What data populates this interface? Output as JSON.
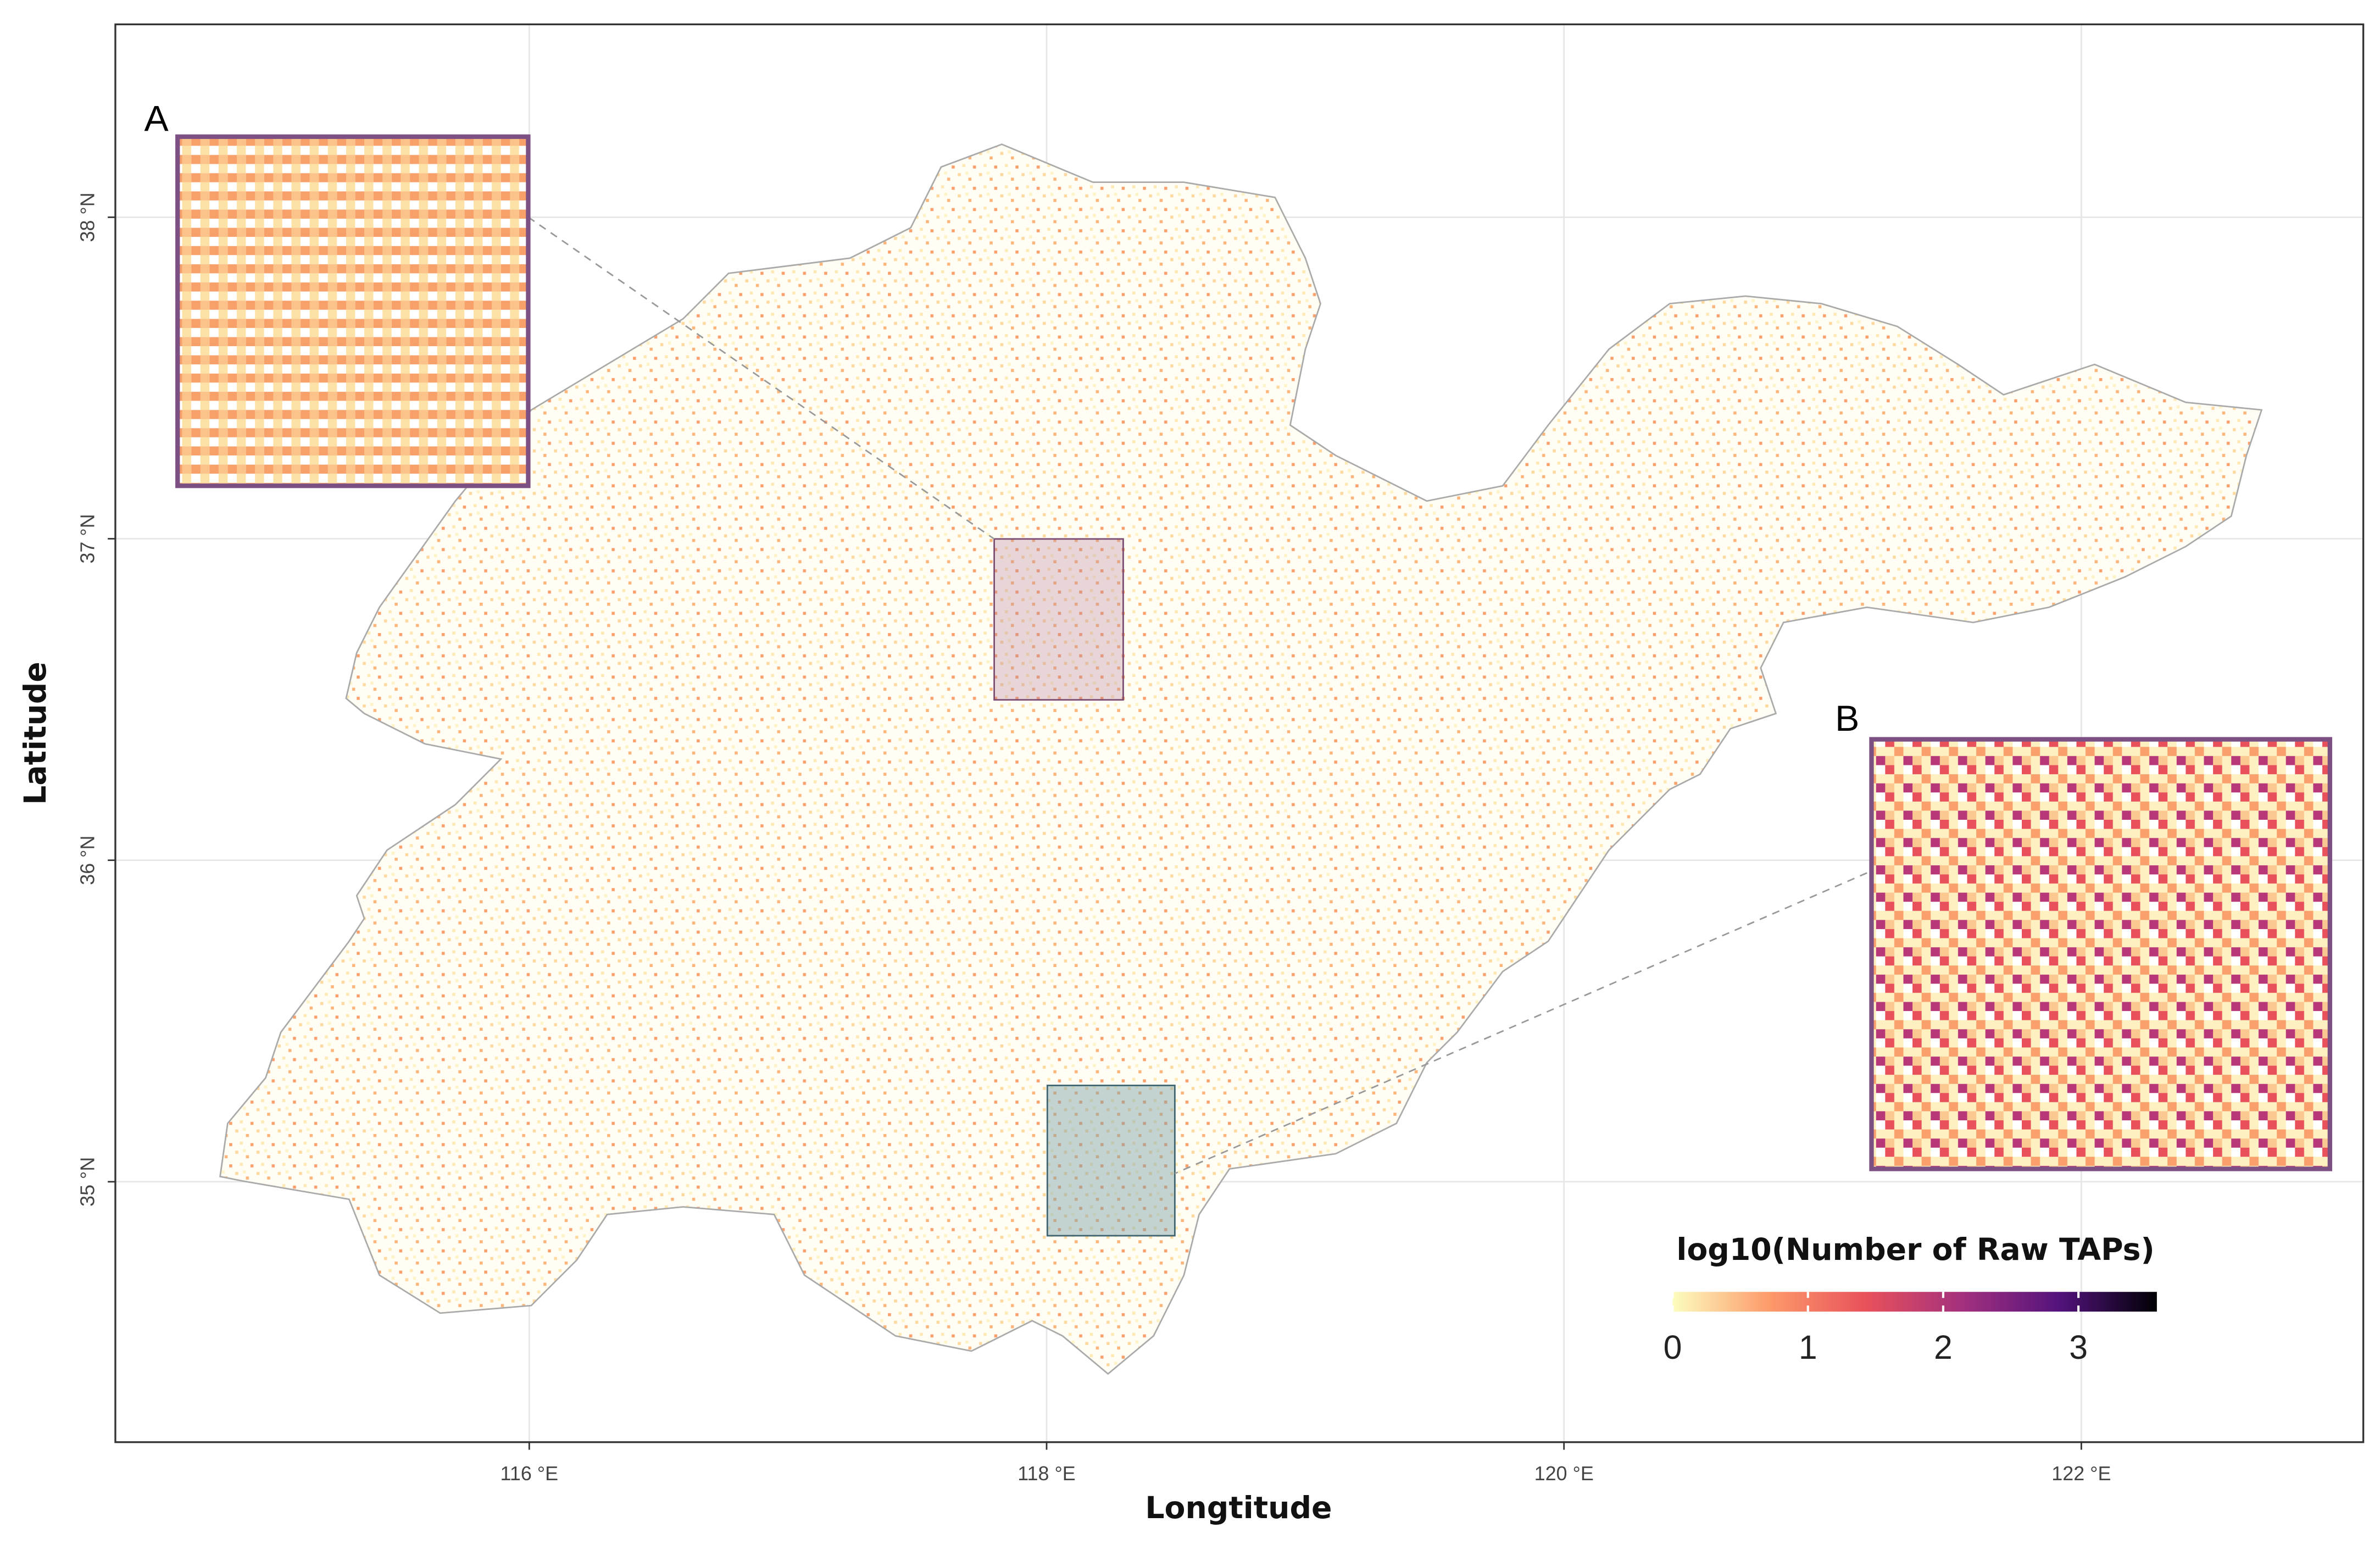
{
  "map": {
    "xlabel": "Longtitude",
    "ylabel": "Latitude",
    "xlim": [
      114.4,
      123.09
    ],
    "ylim": [
      34.19,
      38.6
    ],
    "xticks": [
      {
        "value": 116,
        "label": "116 °E"
      },
      {
        "value": 118,
        "label": "118 °E"
      },
      {
        "value": 120,
        "label": "120 °E"
      },
      {
        "value": 122,
        "label": "122 °E"
      }
    ],
    "yticks": [
      {
        "value": 35,
        "label": "35 °N"
      },
      {
        "value": 36,
        "label": "36 °N"
      },
      {
        "value": 37,
        "label": "37 °N"
      },
      {
        "value": 38,
        "label": "38 °N"
      }
    ],
    "grid": true,
    "insets": [
      {
        "label": "A"
      },
      {
        "label": "B"
      }
    ],
    "legend": {
      "title": "log10(Number of Raw TAPs)",
      "lim": [
        0,
        3.58
      ],
      "ticks": [
        0,
        1,
        2,
        3
      ],
      "colors": [
        "#fcfdbf",
        "#fd9a6a",
        "#e8515b",
        "#a2307e",
        "#52137c",
        "#000004"
      ]
    }
  }
}
